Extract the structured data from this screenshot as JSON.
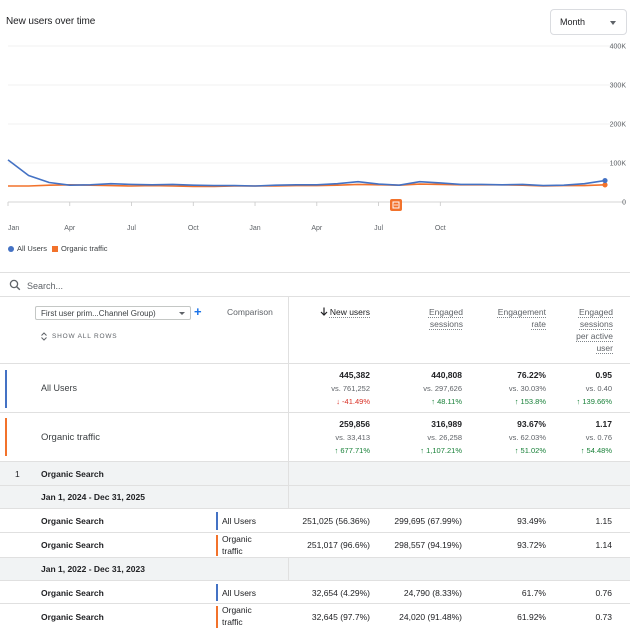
{
  "chart": {
    "title": "New users over time",
    "granularity_select": "Month",
    "legend": {
      "all_users": "All Users",
      "organic": "Organic traffic"
    },
    "annotation_icon": "note-icon"
  },
  "chart_data": {
    "type": "line",
    "y_ticks": [
      "400K",
      "300K",
      "200K",
      "100K",
      "0"
    ],
    "ylim": [
      0,
      400000
    ],
    "x_tick_labels": [
      "Jan",
      "Apr",
      "Jul",
      "Oct",
      "Jan",
      "Apr",
      "Jul",
      "Oct"
    ],
    "series": [
      {
        "name": "All Users",
        "color": "#4472c4",
        "values": [
          108000,
          68000,
          50000,
          43000,
          44000,
          47000,
          45000,
          44000,
          45000,
          43000,
          42000,
          42000,
          41000,
          43000,
          44000,
          44000,
          47000,
          52000,
          46000,
          43000,
          52000,
          49000,
          45000,
          45000,
          44000,
          45000,
          42000,
          43000,
          47000,
          55000
        ]
      },
      {
        "name": "Organic traffic",
        "color": "#f2722b",
        "values": [
          41000,
          41000,
          43000,
          44000,
          43000,
          42000,
          41000,
          42000,
          41000,
          40000,
          40000,
          41000,
          41000,
          41000,
          42000,
          42000,
          43000,
          45000,
          44000,
          43000,
          46000,
          45000,
          44000,
          44000,
          44000,
          43000,
          41000,
          42000,
          42000,
          44000
        ]
      }
    ],
    "grid": true
  },
  "search": {
    "placeholder": "Search..."
  },
  "table": {
    "dimension_select": "First user prim...Channel Group)",
    "add_label": "+",
    "show_all_rows": "SHOW ALL ROWS",
    "comparison_header": "Comparison",
    "columns": [
      {
        "label": "New users"
      },
      {
        "label": "Engaged sessions"
      },
      {
        "label": "Engagement rate"
      },
      {
        "label": "Engaged sessions per active user"
      }
    ],
    "totals": [
      {
        "name": "All Users",
        "color": "#4472c4",
        "metrics": [
          {
            "v": "445,382",
            "vs": "vs. 761,252",
            "ch": "↓ -41.49%",
            "dir": "down"
          },
          {
            "v": "440,808",
            "vs": "vs. 297,626",
            "ch": "↑ 48.11%",
            "dir": "up"
          },
          {
            "v": "76.22%",
            "vs": "vs. 30.03%",
            "ch": "↑ 153.8%",
            "dir": "up"
          },
          {
            "v": "0.95",
            "vs": "vs. 0.40",
            "ch": "↑ 139.66%",
            "dir": "up"
          }
        ]
      },
      {
        "name": "Organic traffic",
        "color": "#f2722b",
        "metrics": [
          {
            "v": "259,856",
            "vs": "vs. 33,413",
            "ch": "↑ 677.71%",
            "dir": "up"
          },
          {
            "v": "316,989",
            "vs": "vs. 26,258",
            "ch": "↑ 1,107.21%",
            "dir": "up"
          },
          {
            "v": "93.67%",
            "vs": "vs. 62.03%",
            "ch": "↑ 51.02%",
            "dir": "up"
          },
          {
            "v": "1.17",
            "vs": "vs. 0.76",
            "ch": "↑ 54.48%",
            "dir": "up"
          }
        ]
      }
    ],
    "group": {
      "index": "1",
      "label": "Organic Search"
    },
    "periods": [
      {
        "label": "Jan 1, 2024 - Dec 31, 2025",
        "rows": [
          {
            "label": "Organic Search",
            "segment": "All Users",
            "color": "#4472c4",
            "values": [
              "251,025 (56.36%)",
              "299,695 (67.99%)",
              "93.49%",
              "1.15"
            ]
          },
          {
            "label": "Organic Search",
            "segment": "Organic traffic",
            "color": "#f2722b",
            "values": [
              "251,017 (96.6%)",
              "298,557 (94.19%)",
              "93.72%",
              "1.14"
            ]
          }
        ]
      },
      {
        "label": "Jan 1, 2022 - Dec 31, 2023",
        "rows": [
          {
            "label": "Organic Search",
            "segment": "All Users",
            "color": "#4472c4",
            "values": [
              "32,654 (4.29%)",
              "24,790 (8.33%)",
              "61.7%",
              "0.76"
            ]
          },
          {
            "label": "Organic Search",
            "segment": "Organic traffic",
            "color": "#f2722b",
            "values": [
              "32,645 (97.7%)",
              "24,020 (91.48%)",
              "61.92%",
              "0.73"
            ]
          }
        ]
      }
    ]
  }
}
